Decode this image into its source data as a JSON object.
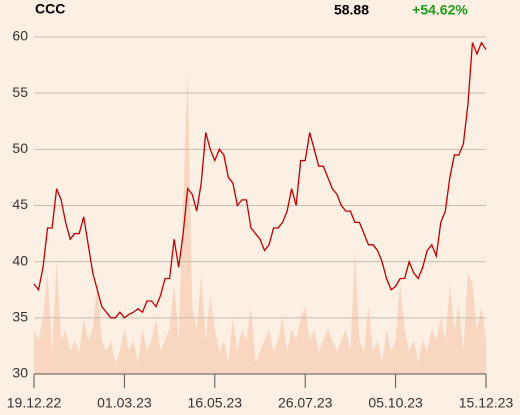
{
  "chart_data": {
    "type": "line",
    "title": "CCC",
    "last_price": 58.88,
    "change": "+54.62%",
    "change_color": "#1a9c1a",
    "color": "#c00000",
    "volume_color": "#f8d6bf",
    "background": "#fcefe4",
    "grid": true,
    "x": [
      0,
      1,
      2,
      3,
      4,
      5,
      6,
      7,
      8,
      9,
      10,
      11,
      12,
      13,
      14,
      15,
      16,
      17,
      18,
      19,
      20,
      21,
      22,
      23,
      24,
      25,
      26,
      27,
      28,
      29,
      30,
      31,
      32,
      33,
      34,
      35,
      36,
      37,
      38,
      39,
      40,
      41,
      42,
      43,
      44,
      45,
      46,
      47,
      48,
      49,
      50,
      51,
      52,
      53,
      54,
      55,
      56,
      57,
      58,
      59,
      60,
      61,
      62,
      63,
      64,
      65,
      66,
      67,
      68,
      69,
      70,
      71,
      72,
      73,
      74,
      75,
      76,
      77,
      78,
      79,
      80,
      81,
      82,
      83,
      84,
      85,
      86,
      87,
      88,
      89,
      90,
      91,
      92,
      93,
      94,
      95,
      96,
      97,
      98,
      99,
      100
    ],
    "values": [
      38,
      37.5,
      39.5,
      43,
      43,
      46.5,
      45.5,
      43.5,
      42,
      42.5,
      42.5,
      44,
      41.5,
      39,
      37.5,
      36,
      35.5,
      35,
      35,
      35.5,
      35,
      35.3,
      35.5,
      35.8,
      35.5,
      36.5,
      36.5,
      36,
      37,
      38.5,
      38.5,
      42,
      39.5,
      42.5,
      46.5,
      46,
      44.5,
      47,
      51.5,
      50,
      49,
      50,
      49.5,
      47.5,
      47,
      45,
      45.5,
      45.5,
      43,
      42.5,
      42,
      41,
      41.5,
      43,
      43,
      43.5,
      44.5,
      46.5,
      45,
      49,
      49,
      51.5,
      50,
      48.5,
      48.5,
      47.5,
      46.5,
      46,
      45,
      44.5,
      44.5,
      43.5,
      43.5,
      42.5,
      41.5,
      41.5,
      41,
      40,
      38.5,
      37.5,
      37.8,
      38.5,
      38.5,
      40,
      39,
      38.5,
      39.5,
      41,
      41.5,
      40.5,
      43.5,
      44.5,
      47.5,
      49.5,
      49.5,
      50.5,
      54,
      59.5,
      58.5,
      59.5,
      58.88
    ],
    "volume": [
      34,
      33,
      35,
      39,
      32,
      40,
      33,
      34,
      32,
      33,
      32,
      35,
      33,
      34,
      38,
      33,
      32,
      33,
      31,
      32,
      34,
      32,
      33,
      31,
      34,
      32,
      33,
      35,
      32,
      33,
      34,
      38,
      33,
      45,
      57,
      36,
      34,
      39,
      33,
      37,
      34,
      32,
      33,
      31,
      35,
      32,
      34,
      33,
      36,
      31,
      32,
      33,
      34,
      32,
      33,
      35,
      32,
      34,
      33,
      35,
      36,
      33,
      34,
      32,
      33,
      34,
      33,
      32,
      33,
      34,
      32,
      41,
      33,
      32,
      36,
      32,
      33,
      31,
      34,
      32,
      33,
      38,
      34,
      32,
      33,
      31,
      33,
      32,
      34,
      33,
      35,
      33,
      38,
      34,
      36,
      32,
      39,
      38,
      34,
      36,
      33
    ],
    "xlim": [
      0,
      100
    ],
    "xticks": [
      {
        "value": 0,
        "label": "19.12.22"
      },
      {
        "value": 20,
        "label": "01.03.23"
      },
      {
        "value": 40,
        "label": "16.05.23"
      },
      {
        "value": 60,
        "label": "26.07.23"
      },
      {
        "value": 80,
        "label": "05.10.23"
      },
      {
        "value": 100,
        "label": "15.12.23"
      }
    ],
    "ylim": [
      30,
      60
    ],
    "yticks": [
      30,
      35,
      40,
      45,
      50,
      55,
      60
    ]
  }
}
